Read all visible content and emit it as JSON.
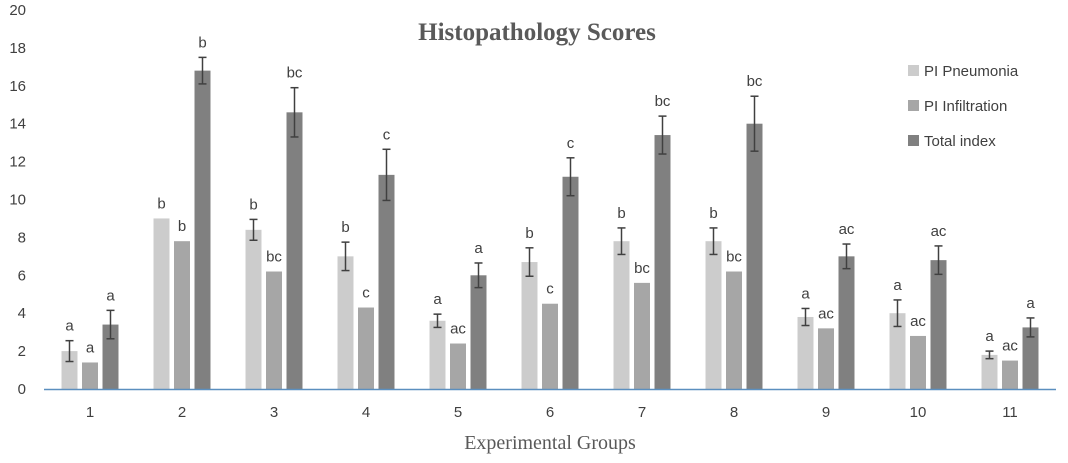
{
  "chart_data": {
    "type": "bar",
    "title": "Histopathology Scores",
    "xlabel": "Experimental Groups",
    "ylabel": "",
    "ylim": [
      0,
      20
    ],
    "yticks": [
      0,
      2,
      4,
      6,
      8,
      10,
      12,
      14,
      16,
      18,
      20
    ],
    "grid": false,
    "legend_position": "top-right",
    "categories": [
      "1",
      "2",
      "3",
      "4",
      "5",
      "6",
      "7",
      "8",
      "9",
      "10",
      "11"
    ],
    "series": [
      {
        "name": "PI Pneumonia",
        "color": "#cccccc",
        "values": [
          2.0,
          9.0,
          8.4,
          7.0,
          3.6,
          6.7,
          7.8,
          7.8,
          3.8,
          4.0,
          1.8
        ],
        "errors": [
          0.55,
          0.0,
          0.55,
          0.75,
          0.35,
          0.75,
          0.7,
          0.7,
          0.45,
          0.7,
          0.2
        ],
        "labels": [
          "a",
          "b",
          "b",
          "b",
          "a",
          "b",
          "b",
          "b",
          "a",
          "a",
          "a"
        ]
      },
      {
        "name": "PI Infiltration",
        "color": "#a6a6a6",
        "values": [
          1.4,
          7.8,
          6.2,
          4.3,
          2.4,
          4.5,
          5.6,
          6.2,
          3.2,
          2.8,
          1.5
        ],
        "errors": [
          0,
          0,
          0,
          0,
          0,
          0,
          0,
          0,
          0,
          0,
          0
        ],
        "labels": [
          "a",
          "b",
          "bc",
          "c",
          "ac",
          "c",
          "bc",
          "bc",
          "ac",
          "ac",
          "ac"
        ]
      },
      {
        "name": "Total index",
        "color": "#808080",
        "values": [
          3.4,
          16.8,
          14.6,
          11.3,
          6.0,
          11.2,
          13.4,
          14.0,
          7.0,
          6.8,
          3.25
        ],
        "errors": [
          0.75,
          0.7,
          1.3,
          1.35,
          0.65,
          1.0,
          1.0,
          1.45,
          0.65,
          0.75,
          0.5
        ],
        "labels": [
          "a",
          "b",
          "bc",
          "c",
          "a",
          "c",
          "bc",
          "bc",
          "ac",
          "ac",
          "a"
        ]
      }
    ]
  }
}
